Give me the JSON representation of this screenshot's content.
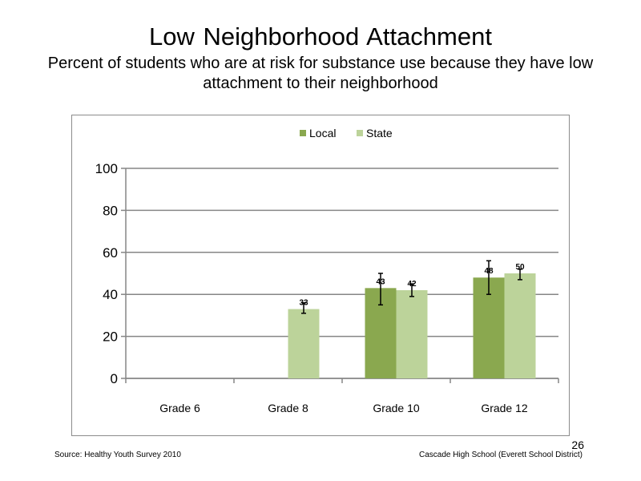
{
  "slide": {
    "title": "Low Neighborhood  Attachment",
    "subtitle": "Percent of students  who are at risk  for substance  use because  they have low attachment  to their neighborhood",
    "source": "Source: Healthy  Youth Survey 2010",
    "school": "Cascade High  School  (Everett School District)",
    "page_number": "26"
  },
  "colors": {
    "local": "#8aa84f",
    "state": "#bcd39a",
    "axis": "#868686",
    "gridline": "#868686",
    "error_bar": "#000000"
  },
  "chart_data": {
    "type": "bar",
    "title": "",
    "xlabel": "",
    "ylabel": "",
    "categories": [
      "Grade 6",
      "Grade 8",
      "Grade 10",
      "Grade 12"
    ],
    "ylim": [
      0,
      100
    ],
    "yticks": [
      "0",
      "20",
      "40",
      "60",
      "80",
      "100"
    ],
    "grid": true,
    "legend_position": "top",
    "series": [
      {
        "name": "Local",
        "color_key": "local",
        "values": [
          null,
          null,
          43,
          48
        ],
        "labels": [
          "",
          "",
          "43",
          "48"
        ],
        "error_low": [
          null,
          null,
          35,
          40
        ],
        "error_high": [
          null,
          null,
          50,
          56
        ]
      },
      {
        "name": "State",
        "color_key": "state",
        "values": [
          null,
          33,
          42,
          50
        ],
        "labels": [
          "",
          "33",
          "42",
          "50"
        ],
        "error_low": [
          null,
          31,
          39,
          47
        ],
        "error_high": [
          null,
          36,
          45,
          52
        ]
      }
    ]
  }
}
